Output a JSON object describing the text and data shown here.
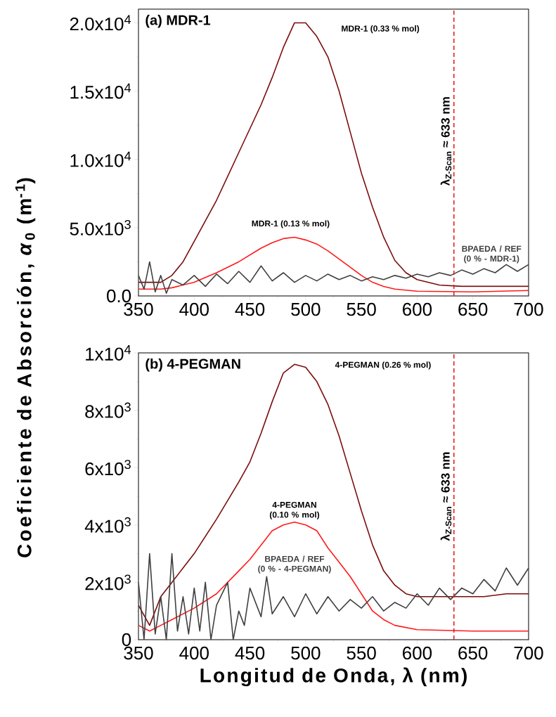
{
  "chart_data": [
    {
      "type": "line",
      "title": "(a) MDR-1",
      "ylabel": "Coeficiente de Absorción, *α*$_{0}$ (m$^{-1}$)",
      "xlim": [
        350,
        700
      ],
      "ylim": [
        0,
        21000
      ],
      "xticks": [
        350,
        400,
        450,
        500,
        550,
        600,
        650,
        700
      ],
      "yticks": [
        {
          "value": 0,
          "label": "0.0"
        },
        {
          "value": 5000,
          "label": "5.0x10$^{3}$"
        },
        {
          "value": 10000,
          "label": "1.0x10$^{4}$"
        },
        {
          "value": 15000,
          "label": "1.5x10$^{4}$"
        },
        {
          "value": 20000,
          "label": "2.0x10$^{4}$"
        }
      ],
      "series": [
        {
          "name": "MDR-1 (0.33 % mol)",
          "color": "#7b0c0c",
          "x": [
            350,
            370,
            380,
            390,
            400,
            420,
            440,
            460,
            470,
            480,
            490,
            500,
            510,
            520,
            530,
            540,
            550,
            560,
            570,
            580,
            590,
            600,
            620,
            640,
            660,
            680,
            700
          ],
          "values": [
            1000,
            1000,
            1500,
            2500,
            4000,
            7000,
            10500,
            14000,
            16000,
            18200,
            20000,
            20000,
            19000,
            17500,
            15000,
            12000,
            9000,
            6500,
            4300,
            2600,
            1700,
            1200,
            800,
            700,
            700,
            700,
            700
          ]
        },
        {
          "name": "MDR-1 (0.13 % mol)",
          "color": "#ff1a1a",
          "x": [
            350,
            370,
            380,
            400,
            420,
            440,
            460,
            470,
            480,
            490,
            500,
            510,
            520,
            530,
            540,
            550,
            560,
            570,
            580,
            600,
            650,
            700
          ],
          "values": [
            500,
            500,
            600,
            1000,
            1700,
            2500,
            3500,
            3900,
            4200,
            4300,
            4100,
            3800,
            3300,
            2700,
            2100,
            1500,
            1000,
            700,
            500,
            350,
            300,
            400
          ]
        },
        {
          "name": "BPAEDA / REF (0 % - MDR-1)",
          "color": "#404040",
          "x": [
            350,
            355,
            360,
            365,
            370,
            375,
            380,
            390,
            400,
            410,
            420,
            430,
            440,
            450,
            460,
            470,
            480,
            490,
            500,
            510,
            520,
            530,
            540,
            550,
            560,
            570,
            580,
            590,
            600,
            610,
            620,
            630,
            640,
            650,
            660,
            670,
            680,
            690,
            700
          ],
          "values": [
            1500,
            500,
            2500,
            300,
            1500,
            200,
            1200,
            800,
            1500,
            700,
            1600,
            900,
            1800,
            1000,
            2200,
            1100,
            1700,
            1000,
            1500,
            1100,
            1600,
            1200,
            1500,
            1100,
            1400,
            1200,
            1500,
            1300,
            1600,
            1400,
            1700,
            1500,
            1900,
            1600,
            2000,
            1700,
            2300,
            1800,
            2300
          ]
        }
      ],
      "ref_lines": [
        {
          "axis": "x",
          "value": 633,
          "label": "λ$_{Z-Scan}$ ≈ 633 nm",
          "color": "#e02020",
          "line_style": "dashed"
        }
      ]
    },
    {
      "type": "line",
      "title": "(b) 4-PEGMAN",
      "xlabel": "Longitud de Onda, λ (nm)",
      "xlim": [
        350,
        700
      ],
      "ylim": [
        0,
        10000
      ],
      "xticks": [
        350,
        400,
        450,
        500,
        550,
        600,
        650,
        700
      ],
      "yticks": [
        {
          "value": 0,
          "label": "0"
        },
        {
          "value": 2000,
          "label": "2x10$^{3}$"
        },
        {
          "value": 4000,
          "label": "4x10$^{3}$"
        },
        {
          "value": 6000,
          "label": "6x10$^{3}$"
        },
        {
          "value": 8000,
          "label": "8x10$^{3}$"
        },
        {
          "value": 10000,
          "label": "1x10$^{4}$"
        }
      ],
      "series": [
        {
          "name": "4-PEGMAN (0.26 % mol)",
          "color": "#7b0c0c",
          "x": [
            350,
            360,
            370,
            380,
            390,
            400,
            420,
            440,
            450,
            460,
            470,
            480,
            490,
            500,
            510,
            520,
            530,
            540,
            550,
            560,
            570,
            580,
            590,
            600,
            620,
            640,
            660,
            680,
            700
          ],
          "values": [
            1200,
            500,
            1500,
            2000,
            2500,
            3000,
            4200,
            5500,
            6200,
            7200,
            8300,
            9300,
            9600,
            9500,
            9000,
            8200,
            7100,
            5800,
            4500,
            3300,
            2400,
            1900,
            1600,
            1500,
            1500,
            1500,
            1500,
            1600,
            1600
          ]
        },
        {
          "name": "4-PEGMAN (0.10 % mol)",
          "color": "#ff1a1a",
          "x": [
            350,
            360,
            370,
            380,
            390,
            400,
            420,
            440,
            450,
            460,
            470,
            480,
            490,
            500,
            510,
            520,
            530,
            540,
            550,
            560,
            570,
            580,
            600,
            650,
            700
          ],
          "values": [
            500,
            300,
            500,
            700,
            900,
            1100,
            1600,
            2400,
            2800,
            3300,
            3800,
            4000,
            4100,
            4000,
            3800,
            3200,
            2700,
            2200,
            1600,
            1000,
            700,
            500,
            350,
            300,
            300
          ]
        },
        {
          "name": "BPAEDA / REF (0 % - 4-PEGMAN)",
          "color": "#404040",
          "x": [
            350,
            355,
            360,
            365,
            370,
            375,
            380,
            385,
            390,
            395,
            400,
            405,
            410,
            415,
            420,
            430,
            435,
            440,
            445,
            450,
            460,
            465,
            470,
            480,
            490,
            500,
            510,
            520,
            530,
            540,
            550,
            560,
            570,
            580,
            590,
            600,
            610,
            620,
            630,
            640,
            650,
            660,
            670,
            680,
            690,
            700
          ],
          "values": [
            2000,
            0,
            3000,
            200,
            1500,
            0,
            3000,
            300,
            1500,
            200,
            1800,
            300,
            2000,
            0,
            1200,
            2000,
            0,
            1000,
            500,
            1800,
            800,
            2200,
            900,
            1500,
            800,
            1600,
            900,
            1500,
            1000,
            1400,
            1100,
            1500,
            1000,
            1300,
            1100,
            1600,
            1200,
            1800,
            1400,
            1800,
            1600,
            2100,
            1700,
            2500,
            1900,
            2500
          ]
        }
      ],
      "ref_lines": [
        {
          "axis": "x",
          "value": 633,
          "label": "λ$_{Z-Scan}$ ≈ 633 nm",
          "color": "#e02020",
          "line_style": "dashed"
        }
      ]
    }
  ]
}
